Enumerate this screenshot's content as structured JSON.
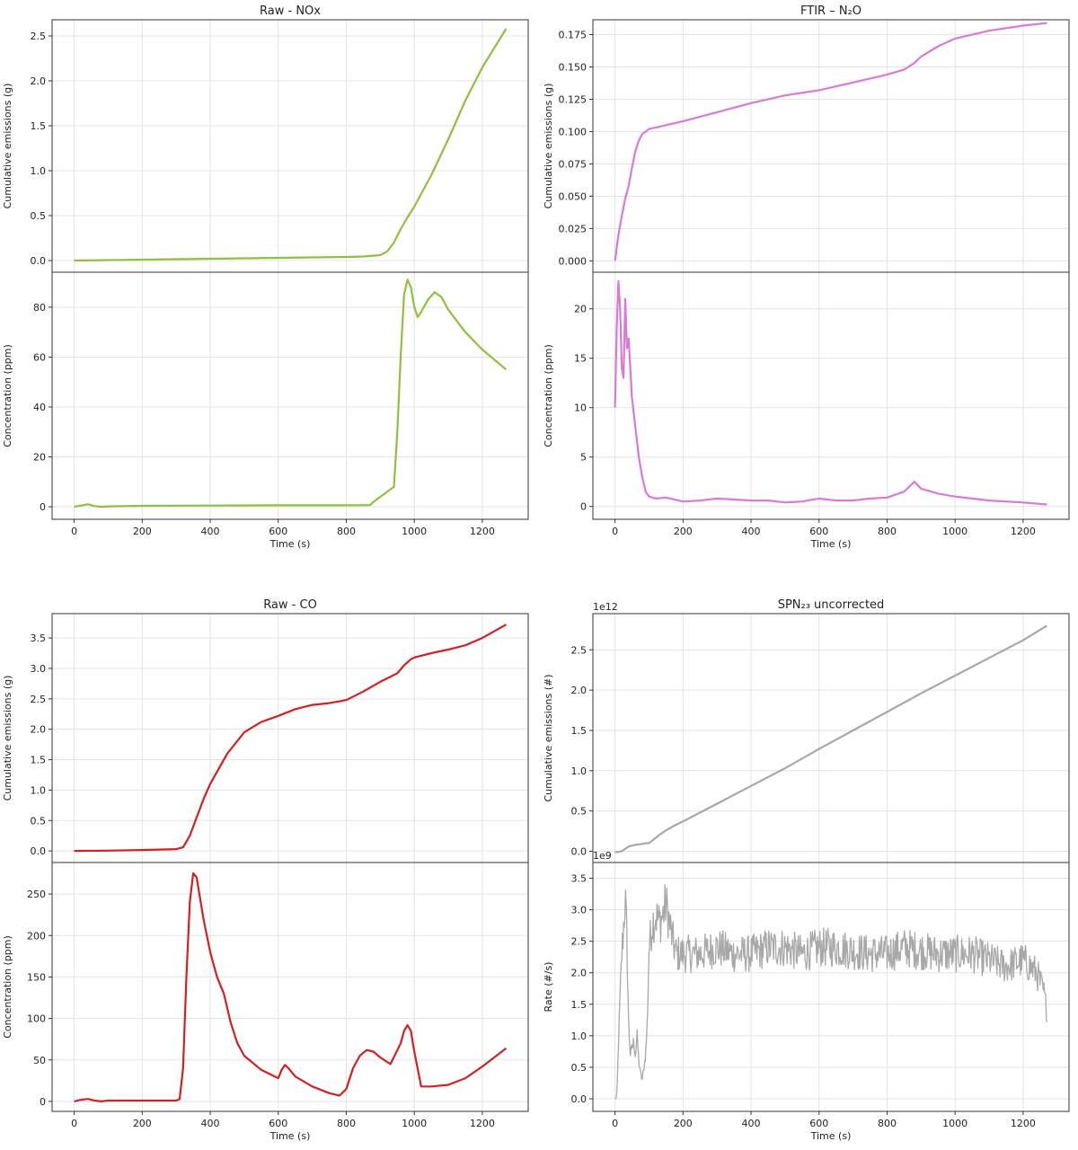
{
  "chart_data": [
    {
      "type": "line",
      "title": "Raw - NOx",
      "color": "#8fc13f",
      "xlabel": "Time (s)",
      "xlim": [
        -65,
        1335
      ],
      "xticks": [
        0,
        200,
        400,
        600,
        800,
        1000,
        1200
      ],
      "upper": {
        "ylabel": "Cumulative emissions (g)",
        "ylim": [
          -0.13,
          2.68
        ],
        "yticks": [
          "0.0",
          "0.5",
          "1.0",
          "1.5",
          "2.0",
          "2.5"
        ],
        "multiplier": "",
        "x": [
          0,
          100,
          200,
          300,
          400,
          500,
          600,
          700,
          800,
          850,
          900,
          920,
          940,
          960,
          980,
          1000,
          1050,
          1100,
          1150,
          1200,
          1270
        ],
        "y": [
          0.0,
          0.005,
          0.01,
          0.015,
          0.02,
          0.025,
          0.03,
          0.035,
          0.04,
          0.045,
          0.06,
          0.1,
          0.2,
          0.35,
          0.48,
          0.6,
          0.95,
          1.35,
          1.78,
          2.15,
          2.58
        ]
      },
      "lower": {
        "ylabel": "Concentration (ppm)",
        "ylim": [
          -5,
          94
        ],
        "yticks": [
          "0",
          "20",
          "40",
          "60",
          "80"
        ],
        "multiplier": "",
        "x": [
          0,
          20,
          40,
          60,
          80,
          100,
          200,
          400,
          600,
          800,
          870,
          880,
          900,
          920,
          940,
          950,
          960,
          970,
          980,
          990,
          1000,
          1010,
          1020,
          1040,
          1060,
          1080,
          1100,
          1150,
          1200,
          1270
        ],
        "y": [
          0,
          0.5,
          1,
          0.3,
          0,
          0.2,
          0.4,
          0.5,
          0.6,
          0.6,
          0.7,
          2,
          4,
          6,
          8,
          30,
          60,
          85,
          91,
          88,
          80,
          76,
          78,
          83,
          86,
          84,
          79,
          70,
          63,
          55
        ]
      }
    },
    {
      "type": "line",
      "title": "FTIR – N₂O",
      "color": "#d87ad8",
      "xlabel": "Time (s)",
      "xlim": [
        -65,
        1335
      ],
      "xticks": [
        0,
        200,
        400,
        600,
        800,
        1000,
        1200
      ],
      "upper": {
        "ylabel": "Cumulative emissions (g)",
        "ylim": [
          -0.0088,
          0.1865
        ],
        "yticks": [
          "0.000",
          "0.025",
          "0.050",
          "0.075",
          "0.100",
          "0.125",
          "0.150",
          "0.175"
        ],
        "multiplier": "",
        "x": [
          0,
          10,
          20,
          30,
          40,
          50,
          60,
          70,
          80,
          90,
          100,
          150,
          200,
          300,
          400,
          500,
          600,
          700,
          800,
          850,
          880,
          900,
          950,
          1000,
          1100,
          1200,
          1270
        ],
        "y": [
          0.0,
          0.02,
          0.035,
          0.048,
          0.058,
          0.072,
          0.085,
          0.093,
          0.098,
          0.1,
          0.102,
          0.105,
          0.108,
          0.115,
          0.122,
          0.128,
          0.132,
          0.138,
          0.144,
          0.148,
          0.153,
          0.158,
          0.166,
          0.172,
          0.178,
          0.182,
          0.184
        ]
      },
      "lower": {
        "ylabel": "Concentration (ppm)",
        "ylim": [
          -1.3,
          23.7
        ],
        "yticks": [
          "0",
          "5",
          "10",
          "15",
          "20"
        ],
        "multiplier": "",
        "x": [
          0,
          5,
          10,
          15,
          20,
          25,
          30,
          35,
          40,
          50,
          60,
          70,
          80,
          90,
          100,
          120,
          150,
          200,
          250,
          300,
          350,
          400,
          450,
          500,
          550,
          600,
          650,
          700,
          750,
          800,
          850,
          880,
          900,
          950,
          1000,
          1050,
          1100,
          1150,
          1200,
          1270
        ],
        "y": [
          10,
          18,
          22.8,
          20,
          14,
          13,
          21,
          16,
          17,
          11,
          8,
          5,
          3,
          1.5,
          1,
          0.8,
          0.9,
          0.5,
          0.6,
          0.8,
          0.7,
          0.6,
          0.6,
          0.4,
          0.5,
          0.8,
          0.6,
          0.6,
          0.8,
          0.9,
          1.5,
          2.5,
          1.8,
          1.3,
          1.0,
          0.8,
          0.6,
          0.5,
          0.4,
          0.2
        ]
      }
    },
    {
      "type": "line",
      "title": "Raw - CO",
      "color": "#d42020",
      "xlabel": "Time (s)",
      "xlim": [
        -65,
        1335
      ],
      "xticks": [
        0,
        200,
        400,
        600,
        800,
        1000,
        1200
      ],
      "upper": {
        "ylabel": "Cumulative emissions (g)",
        "ylim": [
          -0.19,
          3.9
        ],
        "yticks": [
          "0.0",
          "0.5",
          "1.0",
          "1.5",
          "2.0",
          "2.5",
          "3.0",
          "3.5"
        ],
        "multiplier": "",
        "x": [
          0,
          100,
          200,
          300,
          320,
          340,
          360,
          380,
          400,
          450,
          500,
          550,
          600,
          650,
          700,
          750,
          800,
          850,
          900,
          950,
          970,
          990,
          1000,
          1050,
          1100,
          1150,
          1200,
          1270
        ],
        "y": [
          0.0,
          0.005,
          0.015,
          0.03,
          0.06,
          0.25,
          0.55,
          0.85,
          1.1,
          1.6,
          1.95,
          2.12,
          2.22,
          2.33,
          2.4,
          2.43,
          2.48,
          2.62,
          2.78,
          2.92,
          3.05,
          3.15,
          3.18,
          3.25,
          3.31,
          3.38,
          3.5,
          3.72
        ]
      },
      "lower": {
        "ylabel": "Concentration (ppm)",
        "ylim": [
          -12,
          288
        ],
        "yticks": [
          "0",
          "50",
          "100",
          "150",
          "200",
          "250"
        ],
        "multiplier": "",
        "x": [
          0,
          20,
          40,
          60,
          80,
          100,
          200,
          300,
          310,
          320,
          330,
          340,
          350,
          360,
          370,
          380,
          400,
          420,
          440,
          460,
          480,
          500,
          550,
          600,
          610,
          620,
          630,
          650,
          700,
          750,
          780,
          800,
          820,
          840,
          860,
          880,
          900,
          930,
          960,
          970,
          980,
          990,
          1000,
          1020,
          1050,
          1100,
          1150,
          1200,
          1270
        ],
        "y": [
          0,
          2,
          3,
          1,
          0,
          1,
          1,
          1,
          3,
          40,
          150,
          240,
          275,
          270,
          245,
          220,
          180,
          150,
          130,
          95,
          70,
          55,
          38,
          28,
          38,
          44,
          40,
          30,
          18,
          10,
          7,
          15,
          40,
          55,
          62,
          60,
          53,
          45,
          70,
          85,
          92,
          85,
          60,
          18,
          18,
          20,
          28,
          42,
          64
        ]
      }
    },
    {
      "type": "line",
      "title": "SPN₂₃ uncorrected",
      "color": "#a8a8a8",
      "xlabel": "Time (s)",
      "xlim": [
        -65,
        1335
      ],
      "xticks": [
        0,
        200,
        400,
        600,
        800,
        1000,
        1200
      ],
      "upper": {
        "ylabel": "Cumulative emissions (#)",
        "ylim": [
          -0.14,
          2.95
        ],
        "yticks": [
          "0.0",
          "0.5",
          "1.0",
          "1.5",
          "2.0",
          "2.5"
        ],
        "multiplier": "1e12",
        "x": [
          0,
          10,
          20,
          30,
          40,
          60,
          80,
          90,
          100,
          130,
          150,
          180,
          200,
          300,
          400,
          500,
          600,
          700,
          800,
          900,
          1000,
          1100,
          1200,
          1270
        ],
        "y": [
          -0.01,
          -0.01,
          0.0,
          0.03,
          0.06,
          0.08,
          0.09,
          0.1,
          0.1,
          0.2,
          0.26,
          0.33,
          0.37,
          0.59,
          0.81,
          1.03,
          1.27,
          1.5,
          1.73,
          1.96,
          2.18,
          2.4,
          2.62,
          2.8
        ]
      },
      "lower": {
        "ylabel": "Rate (#/s)",
        "ylim": [
          -0.2,
          3.75
        ],
        "yticks": [
          "0.0",
          "0.5",
          "1.0",
          "1.5",
          "2.0",
          "2.5",
          "3.0",
          "3.5"
        ],
        "multiplier": "1e9",
        "noise": 0.3,
        "x": [
          0,
          5,
          10,
          15,
          20,
          25,
          30,
          35,
          40,
          45,
          50,
          55,
          60,
          65,
          70,
          75,
          80,
          85,
          90,
          95,
          100,
          110,
          120,
          130,
          140,
          150,
          160,
          170,
          180,
          200,
          250,
          300,
          350,
          400,
          450,
          500,
          550,
          600,
          650,
          700,
          750,
          800,
          850,
          900,
          950,
          1000,
          1050,
          1100,
          1150,
          1200,
          1240,
          1260,
          1270
        ],
        "y": [
          0.0,
          0.02,
          0.8,
          1.6,
          2.3,
          2.7,
          3.2,
          2.5,
          1.2,
          0.7,
          0.8,
          0.9,
          0.7,
          1.0,
          0.6,
          0.4,
          0.3,
          0.5,
          0.7,
          1.2,
          2.4,
          2.8,
          2.9,
          2.8,
          2.9,
          3.1,
          2.8,
          2.5,
          2.3,
          2.3,
          2.3,
          2.4,
          2.3,
          2.3,
          2.4,
          2.4,
          2.3,
          2.4,
          2.4,
          2.35,
          2.3,
          2.3,
          2.4,
          2.35,
          2.3,
          2.3,
          2.3,
          2.2,
          2.1,
          2.2,
          2.0,
          1.7,
          1.4
        ]
      }
    }
  ]
}
